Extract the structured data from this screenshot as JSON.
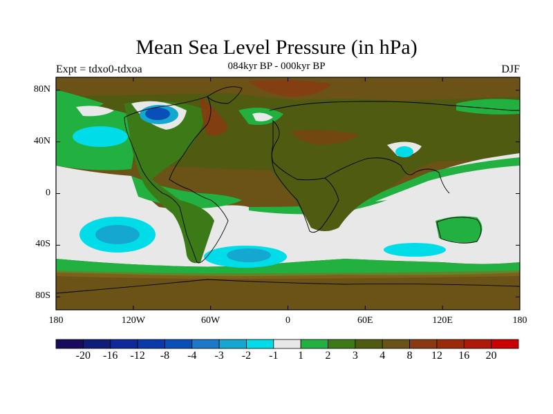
{
  "title": "Mean Sea Level Pressure (in hPa)",
  "subtitle": "084kyr BP - 000kyr BP",
  "left_label": "Expt = tdxo0-tdxoa",
  "right_label": "DJF",
  "colors": {
    "land_bg": "#6b5216",
    "ocean_white": "#e8e8e8",
    "cyan": "#00dde8",
    "teal": "#14a8d0",
    "blue": "#0a4fb8",
    "green": "#22b040",
    "olive_green": "#3c7a18",
    "olive": "#4e5b10",
    "brown_red": "#8a3a10"
  },
  "map": {
    "lon_range": [
      -180,
      180
    ],
    "lat_range": [
      -90,
      90
    ],
    "x_ticks": [
      {
        "value": -180,
        "label": "180"
      },
      {
        "value": -120,
        "label": "120W"
      },
      {
        "value": -60,
        "label": "60W"
      },
      {
        "value": 0,
        "label": "0"
      },
      {
        "value": 60,
        "label": "60E"
      },
      {
        "value": 120,
        "label": "120E"
      },
      {
        "value": 180,
        "label": "180"
      }
    ],
    "y_ticks": [
      {
        "value": 80,
        "label": "80N"
      },
      {
        "value": 40,
        "label": "40N"
      },
      {
        "value": 0,
        "label": "0"
      },
      {
        "value": -40,
        "label": "40S"
      },
      {
        "value": -80,
        "label": "80S"
      }
    ]
  },
  "colorbar": {
    "colors": [
      "#1a0a5c",
      "#101c7a",
      "#0c2a9a",
      "#0a3aaa",
      "#0a4fb8",
      "#1c78c8",
      "#14a8d0",
      "#00dde8",
      "#e8e8e8",
      "#22b040",
      "#3c7a18",
      "#4e5b10",
      "#6b5216",
      "#8a3a10",
      "#9a2a08",
      "#b01808",
      "#cc0000"
    ],
    "labels": [
      "-20",
      "-16",
      "-12",
      "-8",
      "-4",
      "-3",
      "-2",
      "-1",
      "1",
      "2",
      "3",
      "4",
      "8",
      "12",
      "16",
      "20"
    ]
  }
}
